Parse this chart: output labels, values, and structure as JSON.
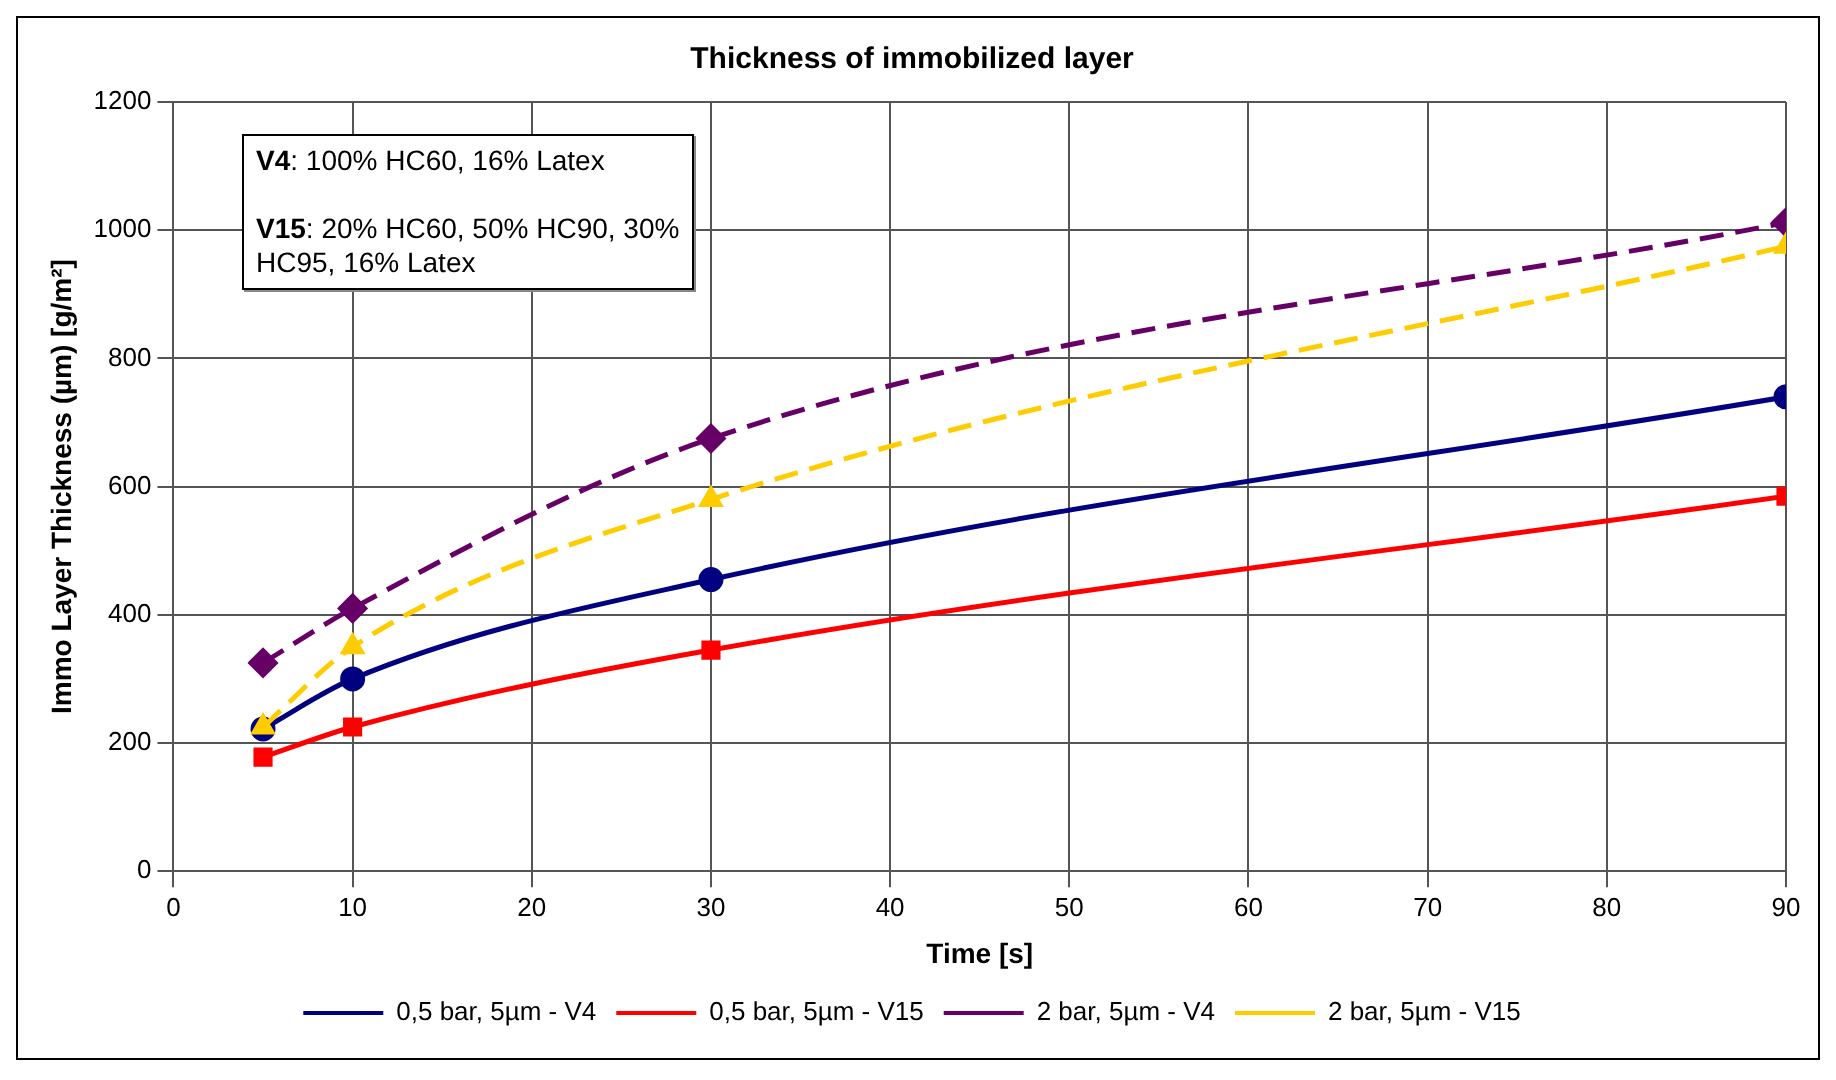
{
  "chart_data": {
    "type": "line",
    "title": "Thickness of immobilized layer",
    "xlabel": "Time [s]",
    "ylabel": "Immo Layer Thickness (µm) [g/m²]",
    "x": [
      5,
      10,
      30,
      90
    ],
    "series": [
      {
        "name": "0,5 bar, 5µm - V4",
        "color": "#000080",
        "marker": "circle",
        "line_style": "solid",
        "values": [
          222,
          300,
          455,
          740
        ]
      },
      {
        "name": "0,5 bar, 5µm - V15",
        "color": "#ff0000",
        "marker": "square",
        "line_style": "solid",
        "values": [
          178,
          225,
          345,
          585
        ]
      },
      {
        "name": "2 bar, 5µm - V4",
        "color": "#660066",
        "marker": "diamond",
        "line_style": "dashed",
        "values": [
          325,
          410,
          675,
          1012
        ]
      },
      {
        "name": "2 bar, 5µm - V15",
        "color": "#ffcc00",
        "marker": "triangle",
        "line_style": "dashed",
        "values": [
          225,
          350,
          580,
          975
        ]
      }
    ],
    "xlim": [
      0,
      90
    ],
    "xticks": [
      0,
      10,
      20,
      30,
      40,
      50,
      60,
      70,
      80,
      90
    ],
    "ylim": [
      0,
      1200
    ],
    "yticks": [
      0,
      200,
      400,
      600,
      800,
      1000,
      1200
    ],
    "grid": true,
    "legend": "bottom",
    "annotations": [
      "V4: 100% HC60, 16% Latex",
      "V15: 20% HC60, 50% HC90, 30% HC95,  16% Latex"
    ]
  }
}
